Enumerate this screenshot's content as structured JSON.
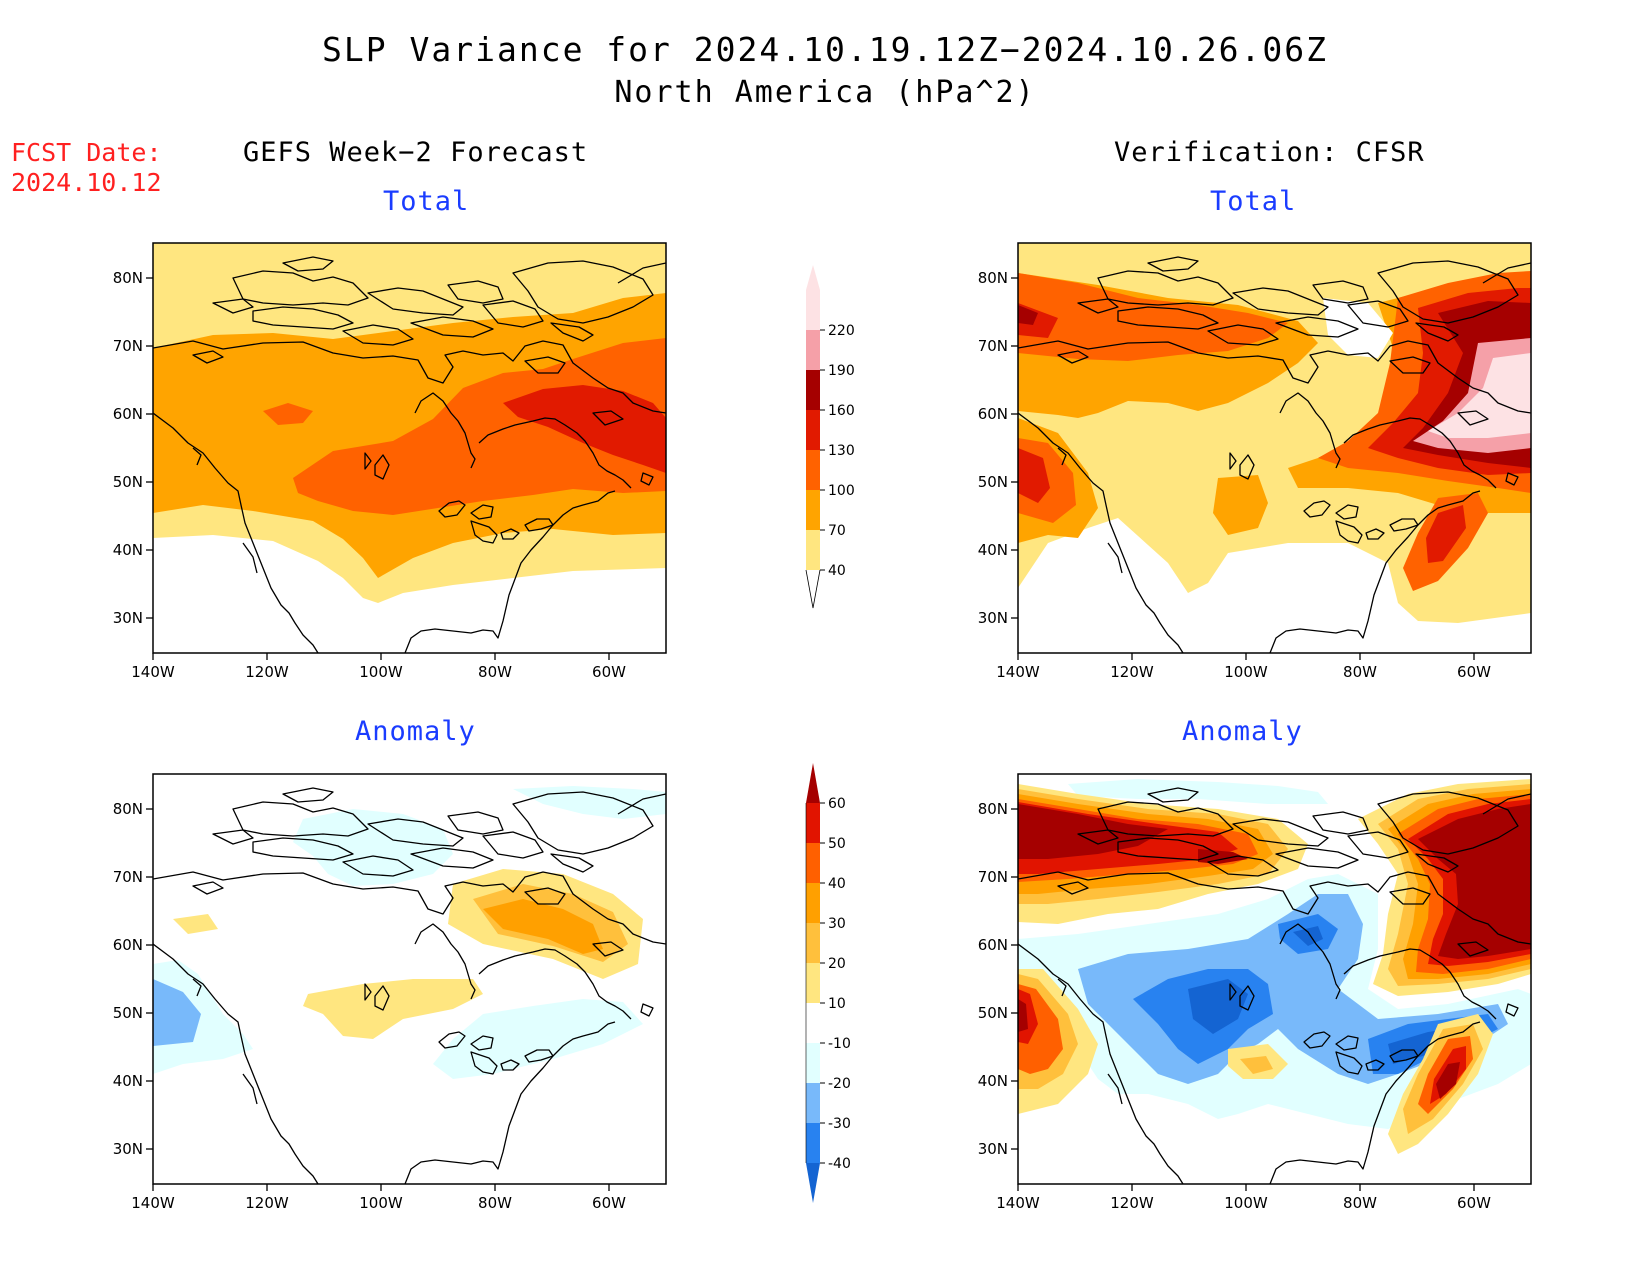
{
  "title": {
    "line1": "SLP Variance for 2024.10.19.12Z−2024.10.26.06Z",
    "line2": "North America (hPa^2)"
  },
  "fcst": {
    "label": "FCST Date:",
    "date": "2024.10.12"
  },
  "columns": {
    "left": "GEFS Week−2 Forecast",
    "right": "Verification: CFSR"
  },
  "panel_titles": {
    "total": "Total",
    "anomaly": "Anomaly"
  },
  "axes": {
    "lon_ticks": [
      "140W",
      "120W",
      "100W",
      "80W",
      "60W"
    ],
    "lat_ticks": [
      "80N",
      "70N",
      "60N",
      "50N",
      "40N",
      "30N"
    ]
  },
  "colorbar_total": {
    "levels": [
      "40",
      "70",
      "100",
      "130",
      "160",
      "190",
      "220"
    ],
    "colors": [
      "#ffe680",
      "#ffa400",
      "#ff6200",
      "#e11a00",
      "#a50000",
      "#f5a0a8",
      "#fde2e4"
    ]
  },
  "colorbar_anomaly": {
    "levels": [
      "-40",
      "-30",
      "-20",
      "-10",
      "10",
      "20",
      "30",
      "40",
      "50",
      "60"
    ],
    "colors": [
      "#1464d2",
      "#2882f0",
      "#78b9fa",
      "#e1ffff",
      "#ffffff",
      "#ffe680",
      "#ffc03c",
      "#ffa000",
      "#ff6000",
      "#e11400",
      "#a50000"
    ]
  },
  "palette": {
    "t1": "#ffe680",
    "t2": "#ffa400",
    "t3": "#ff6200",
    "t4": "#e11a00",
    "t5": "#a50000",
    "t6": "#f5a0a8",
    "t7": "#fde2e4",
    "a_n1": "#e1ffff",
    "a_n2": "#78b9fa",
    "a_n3": "#2882f0",
    "a_n4": "#1464d2",
    "a_p1": "#ffe680",
    "a_p2": "#ffc03c",
    "a_p3": "#ffa000",
    "a_p4": "#ff6000",
    "a_p5": "#e11400",
    "a_p6": "#a50000"
  }
}
